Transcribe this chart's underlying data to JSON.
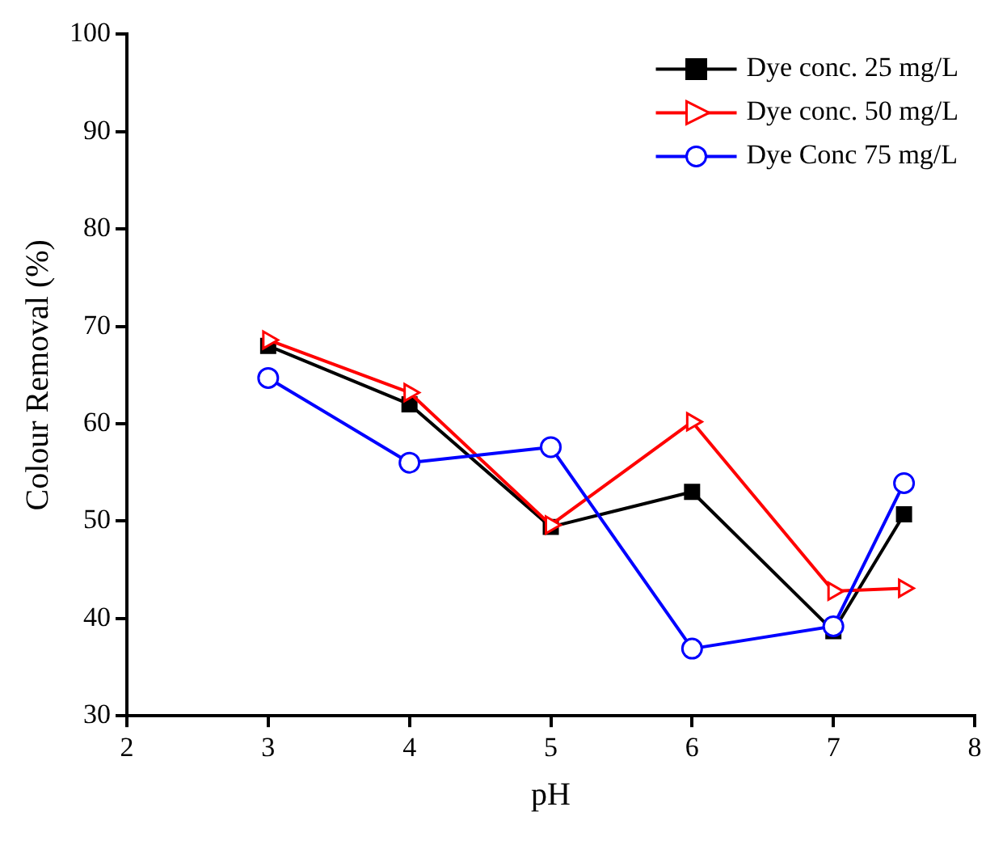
{
  "chart_data": {
    "type": "line",
    "xlabel": "pH",
    "ylabel": "Colour Removal (%)",
    "x": [
      3,
      4,
      5,
      6,
      7,
      7.5
    ],
    "series": [
      {
        "name": "Dye conc. 25 mg/L",
        "color": "#000000",
        "marker": "square",
        "values": [
          68.0,
          62.0,
          49.4,
          53.0,
          38.7,
          50.7
        ]
      },
      {
        "name": "Dye conc. 50 mg/L",
        "color": "#ff0000",
        "marker": "triangle",
        "values": [
          68.6,
          63.2,
          49.6,
          60.2,
          42.8,
          43.1
        ]
      },
      {
        "name": "Dye Conc 75 mg/L",
        "color": "#0000ff",
        "marker": "circle",
        "values": [
          64.7,
          56.0,
          57.6,
          36.9,
          39.2,
          53.9
        ]
      }
    ],
    "xlim": [
      2,
      8
    ],
    "xticks": [
      2,
      3,
      4,
      5,
      6,
      7,
      8
    ],
    "ylim": [
      30,
      100
    ],
    "yticks": [
      30,
      40,
      50,
      60,
      70,
      80,
      90,
      100
    ],
    "grid": false,
    "legend": "top right"
  }
}
